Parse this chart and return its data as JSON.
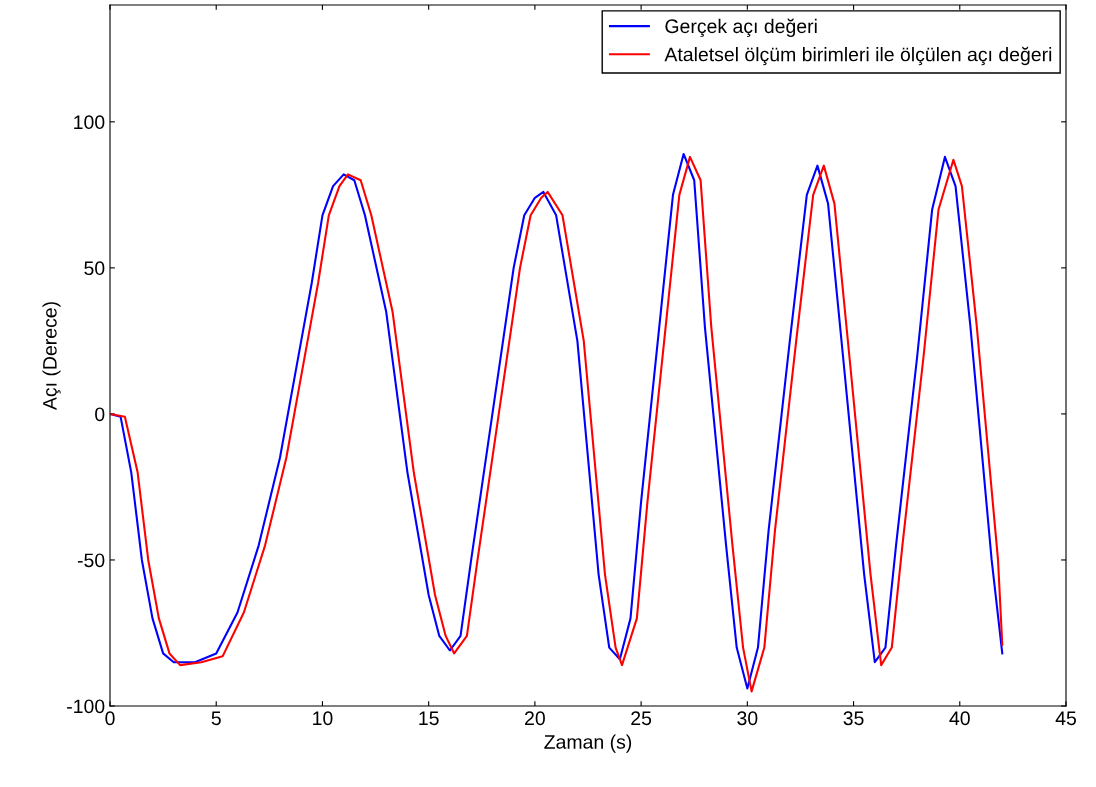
{
  "chart_data": {
    "type": "line",
    "xlabel": "Zaman (s)",
    "ylabel": "Açı (Derece)",
    "xlim": [
      0,
      45
    ],
    "xticks": [
      0,
      5,
      10,
      15,
      20,
      25,
      30,
      35,
      40,
      45
    ],
    "ylim": [
      -100,
      140
    ],
    "yticks": [
      -100,
      -50,
      0,
      50,
      100
    ],
    "grid": false,
    "legend": "top right",
    "line_style": "solid",
    "marker": "none",
    "series": [
      {
        "name": "Gerçek açı değeri",
        "color": "#0000ff",
        "x": [
          0,
          0.5,
          1,
          1.5,
          2,
          2.5,
          3,
          4,
          5,
          6,
          7,
          8,
          9,
          9.5,
          10,
          10.5,
          11,
          11.5,
          12,
          13,
          14,
          15,
          15.5,
          16,
          16.5,
          17,
          18,
          19,
          19.5,
          20,
          20.4,
          21,
          22,
          23,
          23.5,
          24,
          24.5,
          25,
          26,
          26.5,
          27,
          27.5,
          28,
          29,
          29.5,
          30,
          30.5,
          31,
          32,
          32.8,
          33.3,
          33.8,
          34.5,
          35.5,
          36,
          36.5,
          37,
          38,
          38.7,
          39.3,
          39.8,
          40.5,
          41.5,
          42
        ],
        "values": [
          0,
          -1,
          -20,
          -50,
          -70,
          -82,
          -85,
          -85,
          -82,
          -68,
          -45,
          -15,
          25,
          45,
          68,
          78,
          82,
          80,
          68,
          35,
          -20,
          -62,
          -76,
          -81,
          -76,
          -50,
          0,
          50,
          68,
          74,
          76,
          68,
          25,
          -55,
          -80,
          -84,
          -70,
          -30,
          40,
          75,
          89,
          80,
          30,
          -45,
          -80,
          -94,
          -80,
          -40,
          25,
          75,
          85,
          72,
          20,
          -55,
          -85,
          -80,
          -45,
          20,
          70,
          88,
          78,
          30,
          -50,
          -82
        ]
      },
      {
        "name": "Ataletsel ölçüm birimleri ile ölçülen açı değeri",
        "color": "#ff0000",
        "x": [
          0,
          0.7,
          1.3,
          1.8,
          2.3,
          2.8,
          3.3,
          4.3,
          5.3,
          6.3,
          7.3,
          8.3,
          9.3,
          9.8,
          10.3,
          10.8,
          11.2,
          11.8,
          12.3,
          13.3,
          14.3,
          15.3,
          15.8,
          16.2,
          16.8,
          17.3,
          18.3,
          19.3,
          19.8,
          20.3,
          20.6,
          21.3,
          22.3,
          23.3,
          23.8,
          24.1,
          24.8,
          25.3,
          26.3,
          26.8,
          27.3,
          27.8,
          28.3,
          29.3,
          29.8,
          30.2,
          30.8,
          31.3,
          32.3,
          33.1,
          33.6,
          34.1,
          34.8,
          35.8,
          36.3,
          36.8,
          37.3,
          38.3,
          39,
          39.7,
          40.1,
          40.8,
          41.8,
          42
        ],
        "values": [
          0,
          -1,
          -20,
          -50,
          -70,
          -82,
          -86,
          -85,
          -83,
          -68,
          -45,
          -15,
          25,
          45,
          68,
          78,
          82,
          80,
          68,
          35,
          -20,
          -62,
          -76,
          -82,
          -76,
          -50,
          0,
          50,
          68,
          74,
          76,
          68,
          25,
          -55,
          -80,
          -86,
          -70,
          -30,
          40,
          75,
          88,
          80,
          30,
          -45,
          -80,
          -95,
          -80,
          -40,
          25,
          75,
          85,
          72,
          20,
          -55,
          -86,
          -80,
          -45,
          20,
          70,
          87,
          78,
          30,
          -50,
          -79
        ]
      }
    ]
  }
}
